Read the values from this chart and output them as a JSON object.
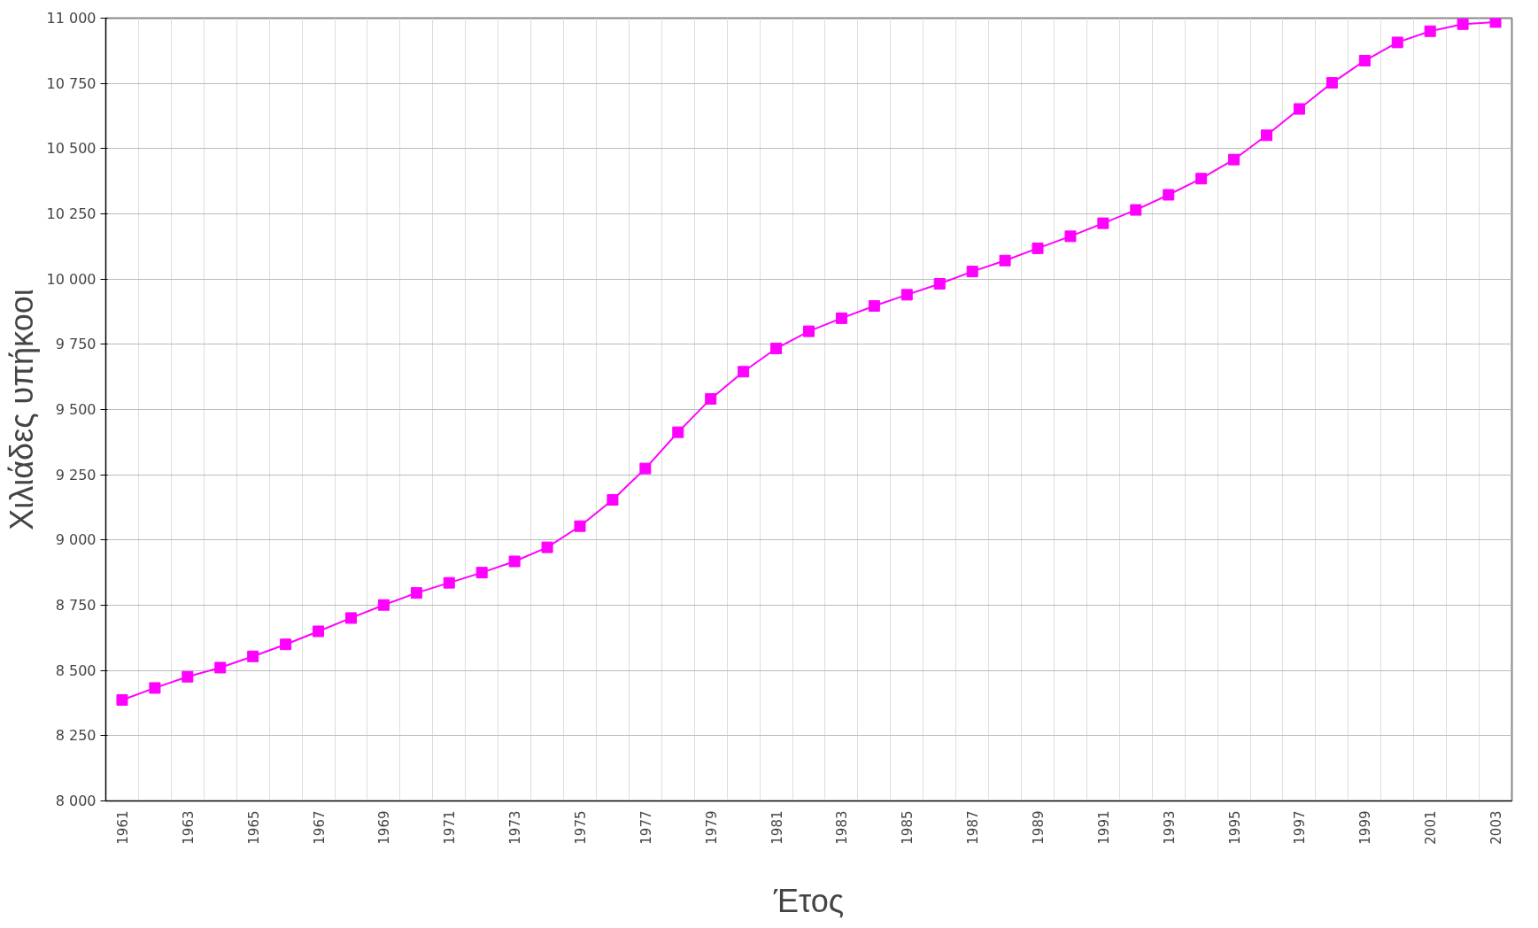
{
  "chart_data": {
    "type": "line",
    "xlabel": "Έτος",
    "ylabel": "Χιλιάδες υπήκοοι",
    "categories": [
      "1961",
      null,
      "1963",
      null,
      "1965",
      null,
      "1967",
      null,
      "1969",
      null,
      "1971",
      null,
      "1973",
      null,
      "1975",
      null,
      "1977",
      null,
      "1979",
      null,
      "1981",
      null,
      "1983",
      null,
      "1985",
      null,
      "1987",
      null,
      "1989",
      null,
      "1991",
      null,
      "1993",
      null,
      "1995",
      null,
      "1997",
      null,
      "1999",
      null,
      "2001",
      null,
      "2003"
    ],
    "series": [
      {
        "color": "#ff00ff",
        "values": [
          8387,
          8433,
          8476,
          8511,
          8554,
          8600,
          8650,
          8701,
          8751,
          8797,
          8836,
          8875,
          8918,
          8972,
          9053,
          9154,
          9274,
          9413,
          9541,
          9645,
          9734,
          9800,
          9850,
          9897,
          9940,
          9982,
          10029,
          10071,
          10118,
          10164,
          10214,
          10265,
          10323,
          10385,
          10458,
          10551,
          10652,
          10752,
          10837,
          10907,
          10950,
          10977,
          10985
        ]
      }
    ],
    "ylim": [
      8000,
      11000
    ],
    "yticks": [
      {
        "value": 8000,
        "label": "8 000"
      },
      {
        "value": 8250,
        "label": "8 250"
      },
      {
        "value": 8500,
        "label": "8 500"
      },
      {
        "value": 8750,
        "label": "8 750"
      },
      {
        "value": 9000,
        "label": "9 000"
      },
      {
        "value": 9250,
        "label": "9 250"
      },
      {
        "value": 9500,
        "label": "9 500"
      },
      {
        "value": 9750,
        "label": "9 750"
      },
      {
        "value": 10000,
        "label": "10 000"
      },
      {
        "value": 10250,
        "label": "10 250"
      },
      {
        "value": 10500,
        "label": "10 500"
      },
      {
        "value": 10750,
        "label": "10 750"
      },
      {
        "value": 11000,
        "label": "11 000"
      }
    ],
    "grid": true,
    "marker": "square",
    "line_style": "solid"
  }
}
